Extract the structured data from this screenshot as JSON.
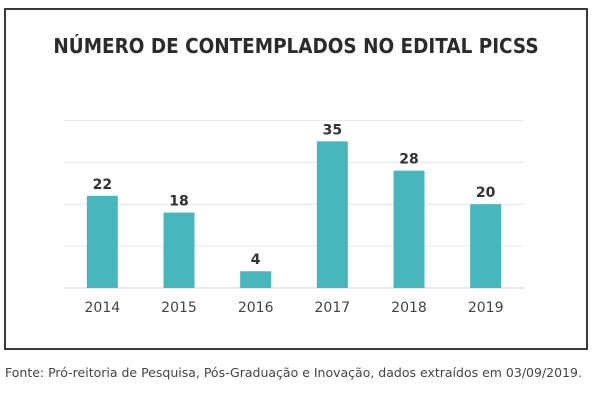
{
  "chart_data": {
    "type": "bar",
    "title": "NÚMERO DE CONTEMPLADOS NO EDITAL PICSS",
    "categories": [
      "2014",
      "2015",
      "2016",
      "2017",
      "2018",
      "2019"
    ],
    "values": [
      22,
      18,
      4,
      35,
      28,
      20
    ],
    "ylim": [
      0,
      42
    ],
    "grid": true,
    "bar_color": "#48b6bd",
    "legend": "none"
  },
  "caption": "Fonte: Pró-reitoria de Pesquisa, Pós-Graduação e Inovação, dados extraídos em 03/09/2019."
}
